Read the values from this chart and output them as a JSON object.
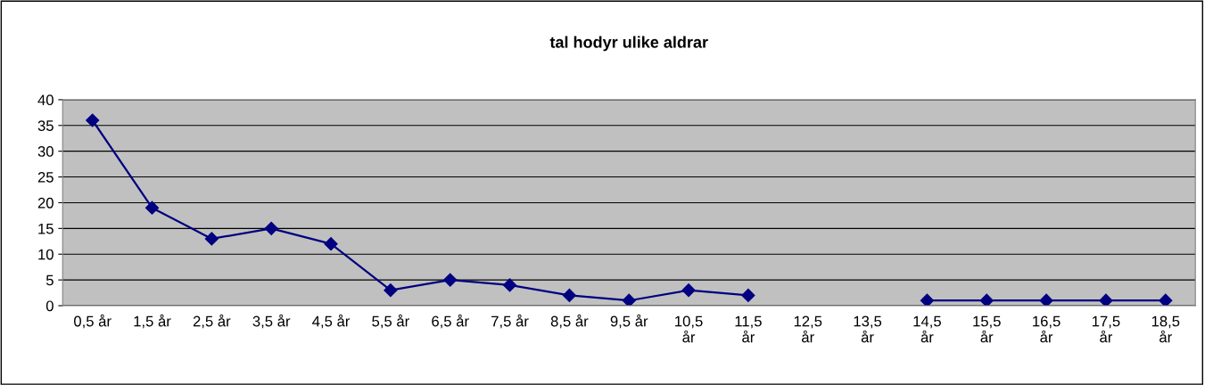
{
  "chart_data": {
    "type": "line",
    "title": "tal hodyr ulike aldrar",
    "categories": [
      "0,5 år",
      "1,5 år",
      "2,5 år",
      "3,5 år",
      "4,5 år",
      "5,5 år",
      "6,5 år",
      "7,5 år",
      "8,5 år",
      "9,5 år",
      "10,5 år",
      "11,5 år",
      "12,5 år",
      "13,5 år",
      "14,5 år",
      "15,5 år",
      "16,5 år",
      "17,5 år",
      "18,5 år"
    ],
    "series": [
      {
        "color": "#000080",
        "values": [
          36,
          19,
          13,
          15,
          12,
          3,
          5,
          4,
          2,
          1,
          3,
          2,
          null,
          null,
          1,
          1,
          1,
          1,
          1
        ]
      }
    ],
    "ylim": [
      0,
      40
    ],
    "yticks": [
      0,
      5,
      10,
      15,
      20,
      25,
      30,
      35,
      40
    ],
    "grid": "y",
    "marker": "diamond",
    "line_style": "solid"
  }
}
